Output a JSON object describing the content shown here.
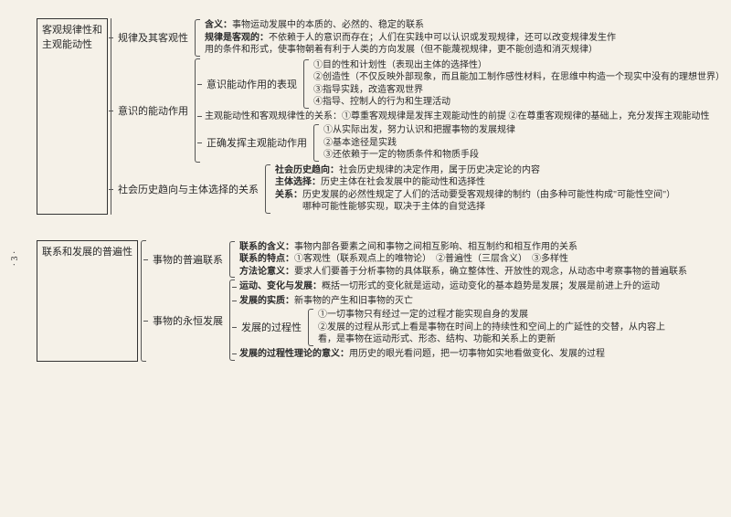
{
  "pageNumber": "· 3 ·",
  "sections": [
    {
      "title": "客观规律性和\n主观能动性",
      "branches": [
        {
          "label": "规律及其客观性",
          "leaves": [
            "含义：事物运动发展中的本质的、必然的、稳定的联系",
            "规律是客观的：不依赖于人的意识而存在；人们在实践中可以认识或发现规律，还可以改变规律发生作",
            "用的条件和形式，使事物朝着有利于人类的方向发展（但不能蔑视规律，更不能创造和消灭规律）"
          ],
          "boldIdx": [
            0,
            1
          ]
        },
        {
          "label": "意识的能动作用",
          "sub": [
            {
              "label": "意识能动作用的表现",
              "leaves": [
                "①目的性和计划性（表现出主体的选择性）",
                "②创造性（不仅反映外部现象，而且能加工制作感性材料，在思维中构造一个现实中没有的理想世界）",
                "③指导实践，改造客观世界",
                "④指导、控制人的行为和生理活动"
              ]
            },
            {
              "label": "",
              "plain": "主观能动性和客观规律性的关系：①尊重客观规律是发挥主观能动性的前提 ②在尊重客观规律的基础上，充分发挥主观能动性"
            },
            {
              "label": "正确发挥主观能动作用",
              "leaves": [
                "①从实际出发，努力认识和把握事物的发展规律",
                "②基本途径是实践",
                "③还依赖于一定的物质条件和物质手段"
              ]
            }
          ]
        },
        {
          "label": "社会历史趋向与主体选择的关系",
          "leaves": [
            "社会历史趋向：社会历史规律的决定作用，属于历史决定论的内容",
            "主体选择：历史主体在社会发展中的能动性和选择性",
            "关系：历史发展的必然性规定了人们的活动要受客观规律的制约（由多种可能性构成\"可能性空间\"）",
            "　　　哪种可能性能够实现，取决于主体的自觉选择"
          ],
          "boldIdx": [
            0,
            1,
            2
          ]
        }
      ]
    },
    {
      "title": "联系和发展的普遍性",
      "branches": [
        {
          "label": "事物的普遍联系",
          "leaves": [
            "联系的含义：事物内部各要素之间和事物之间相互影响、相互制约和相互作用的关系",
            "联系的特点：①客观性（联系观点上的唯物论）　②普遍性（三层含义）　③多样性",
            "方法论意义：要求人们要善于分析事物的具体联系，确立整体性、开放性的观念，从动态中考察事物的普遍联系"
          ],
          "boldIdx": [
            0,
            1,
            2
          ]
        },
        {
          "label": "事物的永恒发展",
          "sub": [
            {
              "label": "",
              "plain": "运动、变化与发展：概括一切形式的变化就是运动，运动变化的基本趋势是发展；发展是前进上升的运动",
              "bold": true
            },
            {
              "label": "",
              "plain": "发展的实质：新事物的产生和旧事物的灭亡",
              "bold": true
            },
            {
              "label": "发展的过程性",
              "leaves": [
                "①一切事物只有经过一定的过程才能实现自身的发展",
                "②发展的过程从形式上看是事物在时间上的持续性和空间上的广延性的交替，从内容上",
                "看，是事物在运动形式、形态、结构、功能和关系上的更新"
              ]
            },
            {
              "label": "",
              "plain": "发展的过程性理论的意义：用历史的眼光看问题，把一切事物如实地看做变化、发展的过程",
              "bold": true
            }
          ]
        }
      ]
    }
  ]
}
